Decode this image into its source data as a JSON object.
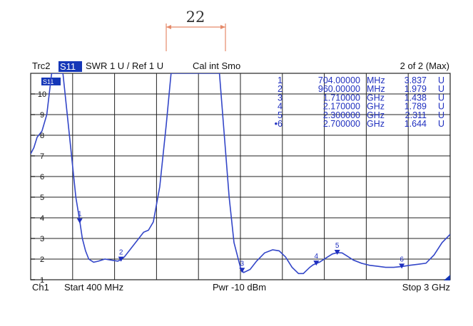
{
  "header": {
    "trace": "Trc2",
    "param": "S11",
    "format": "SWR  1 U /  Ref 1 U",
    "cal": "Cal int Smo",
    "page": "2 of 2 (Max)"
  },
  "footer": {
    "channel": "Ch1",
    "start": "Start  400 MHz",
    "power": "Pwr  -10 dBm",
    "stop": "Stop  3 GHz"
  },
  "annotation": {
    "dimension_label": "22"
  },
  "colors": {
    "trace": "#3346c8",
    "marker": "#1f2fbf",
    "grid": "#222222",
    "badge": "#1537b8"
  },
  "marker_table": [
    {
      "n": "1",
      "freq": "704.00000",
      "unit": "MHz",
      "value": "3.837",
      "vunit": "U"
    },
    {
      "n": "2",
      "freq": "960.00000",
      "unit": "MHz",
      "value": "1.979",
      "vunit": "U"
    },
    {
      "n": "3",
      "freq": "1.710000",
      "unit": "GHz",
      "value": "1.438",
      "vunit": "U"
    },
    {
      "n": "4",
      "freq": "2.170000",
      "unit": "GHz",
      "value": "1.789",
      "vunit": "U"
    },
    {
      "n": "5",
      "freq": "2.300000",
      "unit": "GHz",
      "value": "2.311",
      "vunit": "U"
    },
    {
      "n": "•6",
      "freq": "2.700000",
      "unit": "GHz",
      "value": "1.644",
      "vunit": "U"
    }
  ],
  "chart_data": {
    "type": "line",
    "xlim": [
      400,
      3000
    ],
    "ylim": [
      1,
      11
    ],
    "y_ticks": [
      1,
      2,
      3,
      4,
      5,
      6,
      7,
      8,
      9,
      10
    ],
    "x_divisions": 10,
    "grid": true,
    "series": [
      {
        "x": [
          400,
          420,
          440,
          470,
          500,
          530,
          560,
          600,
          640,
          680,
          704,
          720,
          740,
          760,
          790,
          820,
          860,
          900,
          940,
          960,
          980,
          1010,
          1040,
          1070,
          1100,
          1130,
          1160,
          1200,
          1240,
          1270,
          1300,
          1330,
          1370,
          1410,
          1450,
          1480,
          1510,
          1540,
          1570,
          1600,
          1630,
          1660,
          1700,
          1710,
          1720,
          1760,
          1800,
          1850,
          1900,
          1940,
          1980,
          2020,
          2060,
          2090,
          2110,
          2130,
          2150,
          2170,
          2190,
          2210,
          2240,
          2270,
          2300,
          2330,
          2360,
          2400,
          2450,
          2500,
          2550,
          2600,
          2650,
          2700,
          2750,
          2800,
          2850,
          2900,
          2950,
          3000
        ],
        "y": [
          7.1,
          7.4,
          7.9,
          8.2,
          9.0,
          11.0,
          11.0,
          11.0,
          8.0,
          5.0,
          3.84,
          3.0,
          2.4,
          2.0,
          1.85,
          1.9,
          2.0,
          1.95,
          1.9,
          1.98,
          2.1,
          2.4,
          2.7,
          3.0,
          3.3,
          3.4,
          3.8,
          5.5,
          8.5,
          11.0,
          11.0,
          11.0,
          11.0,
          11.0,
          11.0,
          11.0,
          11.0,
          11.0,
          11.0,
          8.0,
          5.0,
          2.8,
          1.6,
          1.44,
          1.35,
          1.5,
          1.9,
          2.3,
          2.45,
          2.4,
          2.1,
          1.6,
          1.3,
          1.3,
          1.45,
          1.6,
          1.72,
          1.79,
          1.85,
          1.95,
          2.1,
          2.25,
          2.31,
          2.3,
          2.15,
          1.95,
          1.8,
          1.7,
          1.65,
          1.6,
          1.6,
          1.64,
          1.7,
          1.75,
          1.8,
          2.2,
          2.8,
          3.2
        ]
      }
    ],
    "markers": [
      {
        "label": "1",
        "x": 704,
        "y": 3.837
      },
      {
        "label": "2",
        "x": 960,
        "y": 1.979
      },
      {
        "label": "3",
        "x": 1710,
        "y": 1.438
      },
      {
        "label": "4",
        "x": 2170,
        "y": 1.789
      },
      {
        "label": "5",
        "x": 2300,
        "y": 2.311
      },
      {
        "label": "6",
        "x": 2700,
        "y": 1.644
      }
    ]
  }
}
